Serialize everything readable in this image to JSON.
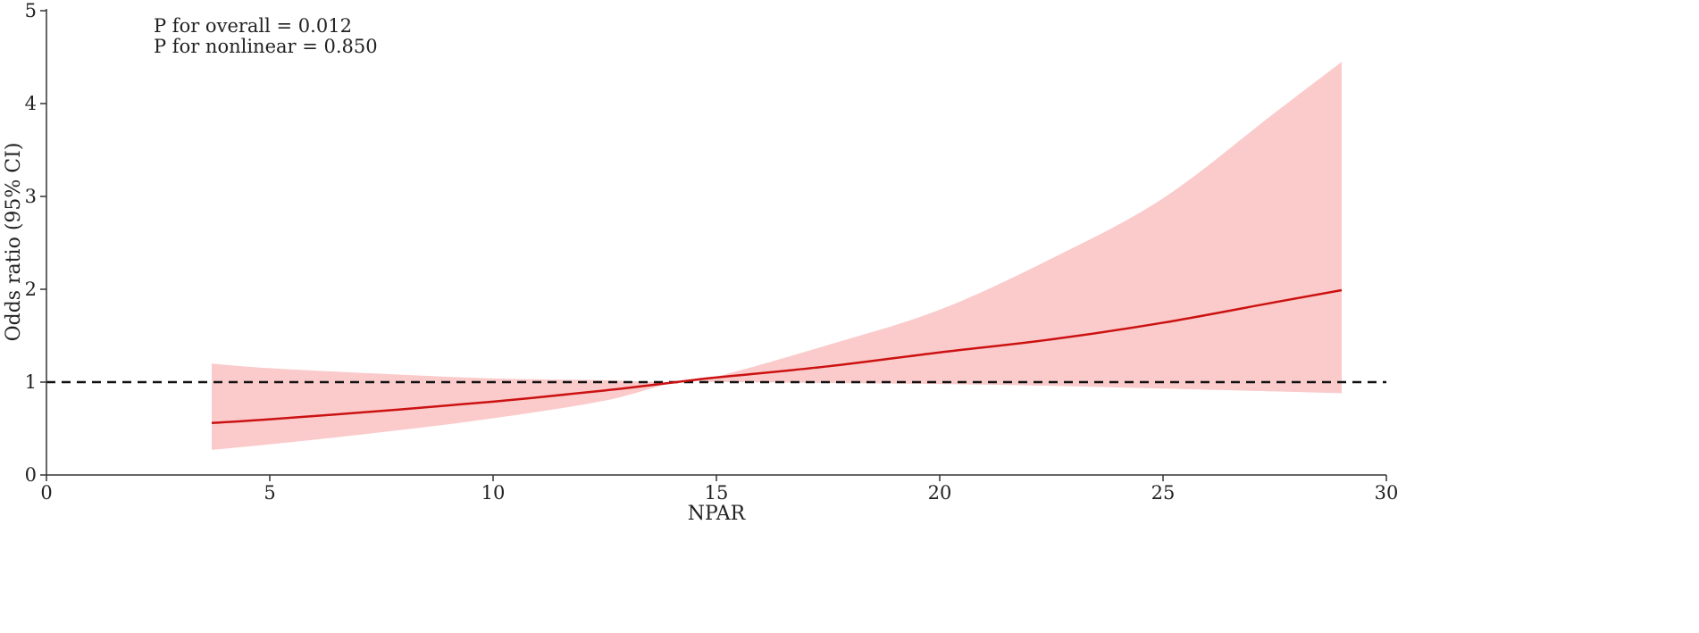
{
  "chart_data": {
    "type": "line",
    "xlabel": "NPAR",
    "ylabel": "Odds ratio (95% CI)",
    "xlim": [
      0,
      30
    ],
    "ylim": [
      0,
      5
    ],
    "xticks": [
      0,
      5,
      10,
      15,
      20,
      25,
      30
    ],
    "yticks": [
      0,
      1,
      2,
      3,
      4,
      5
    ],
    "grid": false,
    "annotations": [
      "P for overall = 0.012",
      "P for nonlinear = 0.850"
    ],
    "reference_line": {
      "y": 1,
      "style": "dashed",
      "color": "#111111"
    },
    "colors": {
      "line": "#cc1111",
      "band": "#f9a8a8"
    },
    "series": [
      {
        "x": [
          3.7,
          5,
          7.5,
          10,
          12.5,
          14.1,
          15,
          17.5,
          20,
          22.5,
          25,
          27.5,
          29
        ],
        "y": [
          0.56,
          0.6,
          0.69,
          0.79,
          0.91,
          1.0,
          1.05,
          1.17,
          1.32,
          1.46,
          1.64,
          1.86,
          1.99
        ],
        "lower": [
          0.27,
          0.33,
          0.46,
          0.61,
          0.8,
          1.0,
          1.0,
          0.99,
          0.98,
          0.96,
          0.93,
          0.9,
          0.88
        ],
        "upper": [
          1.2,
          1.15,
          1.09,
          1.04,
          1.02,
          1.0,
          1.06,
          1.4,
          1.78,
          2.33,
          2.98,
          3.9,
          4.45
        ]
      }
    ]
  }
}
